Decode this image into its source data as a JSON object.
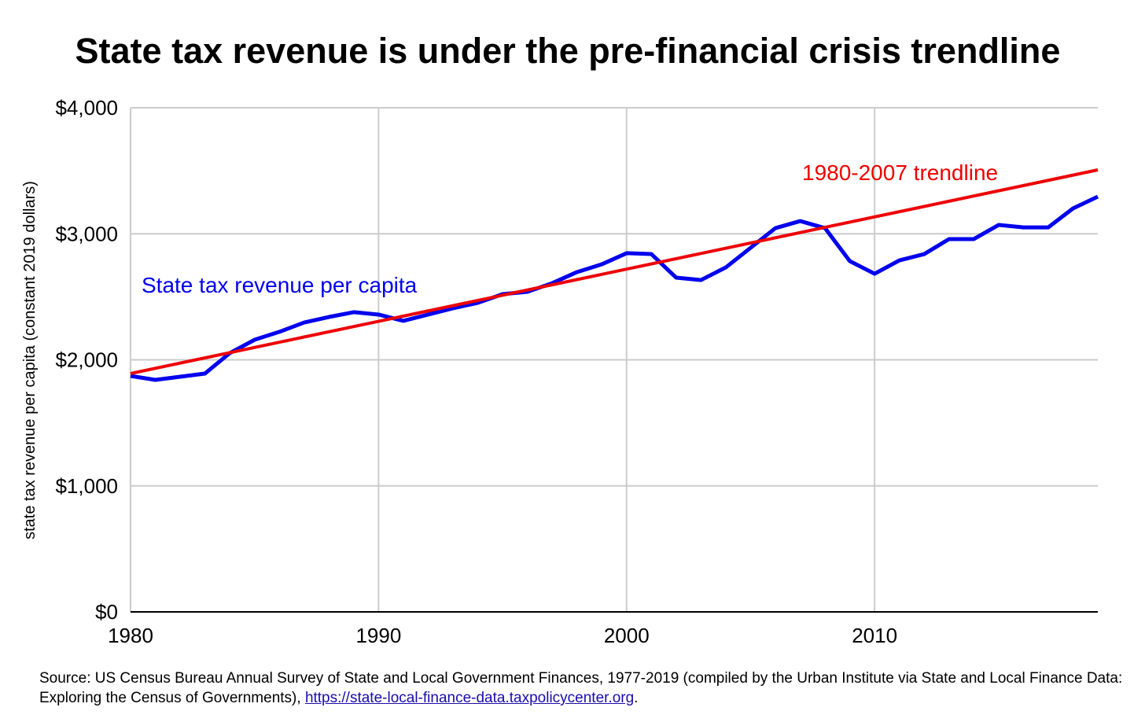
{
  "chart_data": {
    "type": "line",
    "title": "State tax revenue is under the pre-financial crisis trendline",
    "xlabel": "",
    "ylabel": "state tax revenue per capita (constant 2019 dollars)",
    "xlim": [
      1980,
      2019
    ],
    "ylim": [
      0,
      4000
    ],
    "grid": true,
    "x_ticks": [
      "1980",
      "1990",
      "2000",
      "2010"
    ],
    "x_tick_values": [
      1980,
      1990,
      2000,
      2010
    ],
    "y_ticks": [
      "$0",
      "$1,000",
      "$2,000",
      "$3,000",
      "$4,000"
    ],
    "y_tick_values": [
      0,
      1000,
      2000,
      3000,
      4000
    ],
    "x": [
      1980,
      1981,
      1982,
      1983,
      1984,
      1985,
      1986,
      1987,
      1988,
      1989,
      1990,
      1991,
      1992,
      1993,
      1994,
      1995,
      1996,
      1997,
      1998,
      1999,
      2000,
      2001,
      2002,
      2003,
      2004,
      2005,
      2006,
      2007,
      2008,
      2009,
      2010,
      2011,
      2012,
      2013,
      2014,
      2015,
      2016,
      2017,
      2018,
      2019
    ],
    "series": [
      {
        "name": "State tax revenue per capita",
        "color": "#0000ee",
        "values": [
          1872,
          1841,
          1866,
          1891,
          2053,
          2159,
          2222,
          2296,
          2340,
          2378,
          2359,
          2309,
          2359,
          2409,
          2452,
          2521,
          2540,
          2608,
          2696,
          2758,
          2846,
          2839,
          2652,
          2633,
          2733,
          2889,
          3045,
          3101,
          3045,
          2783,
          2683,
          2789,
          2839,
          2958,
          2958,
          3070,
          3051,
          3051,
          3201,
          3295
        ]
      },
      {
        "name": "1980-2007 trendline",
        "color": "#ee0000",
        "x": [
          1980,
          2019
        ],
        "values": [
          1891,
          3507
        ]
      }
    ],
    "annotations": [
      "State tax revenue per capita",
      "1980-2007 trendline"
    ]
  },
  "source": {
    "text": "Source: US Census Bureau Annual Survey of State and Local Government Finances, 1977-2019 (compiled by the Urban Institute via State and Local Finance Data: Exploring the Census of Governments), ",
    "link": "https://state-local-finance-data.taxpolicycenter.org",
    "end": "."
  }
}
